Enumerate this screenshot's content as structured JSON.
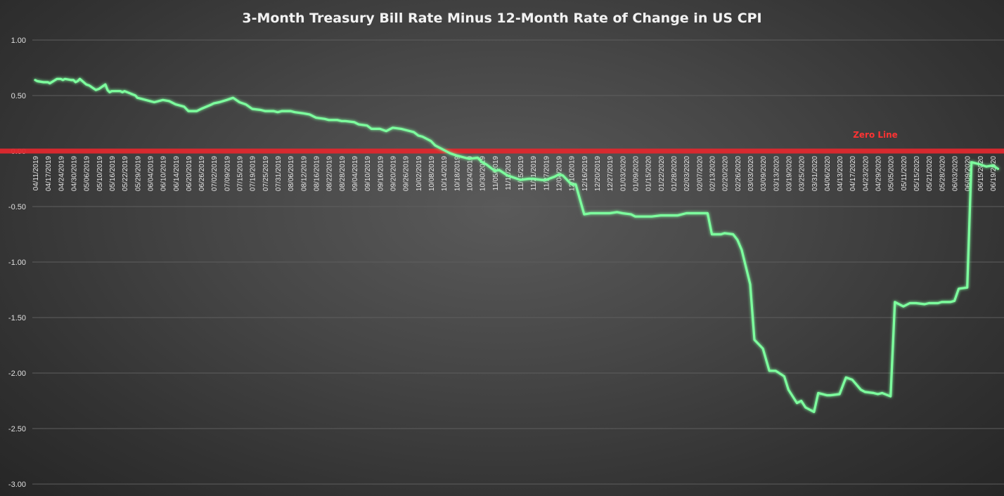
{
  "chart_data": {
    "type": "line",
    "title": "3-Month Treasury Bill Rate Minus 12-Month Rate of Change in US CPI",
    "xlabel": "",
    "ylabel": "",
    "ylim": [
      -3.0,
      1.0
    ],
    "yticks": [
      "1.00",
      "0.50",
      "0.00",
      "-0.50",
      "-1.00",
      "-1.50",
      "-2.00",
      "-2.50",
      "-3.00"
    ],
    "ytick_values": [
      1.0,
      0.5,
      0.0,
      -0.5,
      -1.0,
      -1.5,
      -2.0,
      -2.5,
      -3.0
    ],
    "grid": true,
    "legend": "none",
    "colors": {
      "series": "#7dff9e",
      "zero_line": "#e0282e",
      "annotation": "#ff3333",
      "title": "#f2f2f2",
      "grid": "#5e5e5e"
    },
    "x_tick_labels": [
      "04/11/2019",
      "04/17/2019",
      "04/24/2019",
      "04/30/2019",
      "05/06/2019",
      "05/10/2019",
      "05/16/2019",
      "05/22/2019",
      "05/29/2019",
      "06/04/2019",
      "06/10/2019",
      "06/14/2019",
      "06/20/2019",
      "06/26/2019",
      "07/02/2019",
      "07/09/2019",
      "07/15/2019",
      "07/19/2019",
      "07/25/2019",
      "07/31/2019",
      "08/06/2019",
      "08/12/2019",
      "08/16/2019",
      "08/22/2019",
      "08/28/2019",
      "09/04/2019",
      "09/10/2019",
      "09/16/2019",
      "09/20/2019",
      "09/26/2019",
      "10/02/2019",
      "10/08/2019",
      "10/14/2019",
      "10/18/2019",
      "10/24/2019",
      "10/30/2019",
      "11/05/2019",
      "11/11/2019",
      "11/15/2019",
      "11/21/2019",
      "11/27/2019",
      "12/04/2019",
      "12/10/2019",
      "12/16/2019",
      "12/20/2019",
      "12/27/2019",
      "01/03/2020",
      "01/09/2020",
      "01/15/2020",
      "01/22/2020",
      "01/28/2020",
      "02/03/2020",
      "02/07/2020",
      "02/13/2020",
      "02/20/2020",
      "02/26/2020",
      "03/03/2020",
      "03/09/2020",
      "03/13/2020",
      "03/19/2020",
      "03/25/2020",
      "03/31/2020",
      "04/06/2020",
      "04/13/2020",
      "04/17/2020",
      "04/23/2020",
      "04/29/2020",
      "05/05/2020",
      "05/11/2020",
      "05/15/2020",
      "05/21/2020",
      "05/28/2020",
      "06/03/2020",
      "06/09/2020",
      "06/15/2020",
      "06/19/2020"
    ],
    "series": [
      {
        "x": [
          "04/11/2019",
          "04/12/2019",
          "04/15/2019",
          "04/16/2019",
          "04/17/2019",
          "04/18/2019",
          "04/22/2019",
          "04/23/2019",
          "04/24/2019",
          "04/25/2019",
          "04/26/2019",
          "04/29/2019",
          "04/30/2019",
          "05/01/2019",
          "05/02/2019",
          "05/03/2019",
          "05/06/2019",
          "05/07/2019",
          "05/08/2019",
          "05/09/2019",
          "05/10/2019",
          "05/13/2019",
          "05/14/2019",
          "05/15/2019",
          "05/16/2019",
          "05/17/2019",
          "05/20/2019",
          "05/21/2019",
          "05/22/2019",
          "05/28/2019",
          "05/29/2019",
          "05/31/2019",
          "06/04/2019",
          "06/06/2019",
          "06/10/2019",
          "06/12/2019",
          "06/14/2019",
          "06/18/2019",
          "06/20/2019",
          "06/24/2019",
          "06/26/2019",
          "07/01/2019",
          "07/02/2019",
          "07/05/2019",
          "07/09/2019",
          "07/12/2019",
          "07/15/2019",
          "07/17/2019",
          "07/19/2019",
          "07/23/2019",
          "07/25/2019",
          "07/29/2019",
          "07/31/2019",
          "08/02/2019",
          "08/06/2019",
          "08/08/2019",
          "08/12/2019",
          "08/14/2019",
          "08/16/2019",
          "08/20/2019",
          "08/22/2019",
          "08/26/2019",
          "08/28/2019",
          "08/30/2019",
          "09/04/2019",
          "09/06/2019",
          "09/10/2019",
          "09/12/2019",
          "09/16/2019",
          "09/18/2019",
          "09/20/2019",
          "09/24/2019",
          "09/26/2019",
          "09/30/2019",
          "10/02/2019",
          "10/04/2019",
          "10/08/2019",
          "10/10/2019",
          "10/14/2019",
          "10/16/2019",
          "10/18/2019",
          "10/22/2019",
          "10/24/2019",
          "10/28/2019",
          "10/30/2019",
          "11/01/2019",
          "11/05/2019",
          "11/07/2019",
          "11/11/2019",
          "11/13/2019",
          "11/15/2019",
          "11/19/2019",
          "11/21/2019",
          "11/25/2019",
          "11/27/2019",
          "12/02/2019",
          "12/04/2019",
          "12/06/2019",
          "12/10/2019",
          "12/12/2019",
          "12/16/2019",
          "12/18/2019",
          "12/20/2019",
          "12/24/2019",
          "12/27/2019",
          "12/31/2019",
          "01/03/2020",
          "01/07/2020",
          "01/09/2020",
          "01/13/2020",
          "01/15/2020",
          "01/17/2020",
          "01/22/2020",
          "01/24/2020",
          "01/28/2020",
          "01/30/2020",
          "02/03/2020",
          "02/05/2020",
          "02/07/2020",
          "02/11/2020",
          "02/13/2020",
          "02/18/2020",
          "02/20/2020",
          "02/24/2020",
          "02/26/2020",
          "02/28/2020",
          "03/03/2020",
          "03/05/2020",
          "03/09/2020",
          "03/11/2020",
          "03/13/2020",
          "03/17/2020",
          "03/19/2020",
          "03/23/2020",
          "03/25/2020",
          "03/27/2020",
          "03/31/2020",
          "04/02/2020",
          "04/06/2020",
          "04/08/2020",
          "04/13/2020",
          "04/15/2020",
          "04/17/2020",
          "04/21/2020",
          "04/23/2020",
          "04/27/2020",
          "04/29/2020",
          "05/01/2020",
          "05/05/2020",
          "05/07/2020",
          "05/11/2020",
          "05/13/2020",
          "05/15/2020",
          "05/19/2020",
          "05/21/2020",
          "05/26/2020",
          "05/28/2020",
          "06/01/2020",
          "06/03/2020",
          "06/05/2020",
          "06/09/2020",
          "06/11/2020",
          "06/15/2020",
          "06/17/2020",
          "06/19/2020",
          "06/22/2020"
        ],
        "values": [
          0.64,
          0.63,
          0.62,
          0.62,
          0.62,
          0.61,
          0.65,
          0.65,
          0.65,
          0.64,
          0.65,
          0.64,
          0.64,
          0.62,
          0.63,
          0.65,
          0.6,
          0.59,
          0.57,
          0.55,
          0.56,
          0.6,
          0.55,
          0.53,
          0.54,
          0.54,
          0.54,
          0.53,
          0.54,
          0.5,
          0.48,
          0.47,
          0.45,
          0.44,
          0.46,
          0.45,
          0.42,
          0.4,
          0.36,
          0.36,
          0.38,
          0.42,
          0.43,
          0.44,
          0.46,
          0.48,
          0.44,
          0.42,
          0.38,
          0.37,
          0.36,
          0.36,
          0.35,
          0.36,
          0.36,
          0.35,
          0.34,
          0.33,
          0.3,
          0.29,
          0.28,
          0.28,
          0.27,
          0.27,
          0.26,
          0.24,
          0.23,
          0.2,
          0.2,
          0.18,
          0.21,
          0.2,
          0.19,
          0.17,
          0.14,
          0.13,
          0.09,
          0.05,
          0.01,
          -0.02,
          -0.04,
          -0.06,
          -0.07,
          -0.06,
          -0.1,
          -0.12,
          -0.18,
          -0.17,
          -0.22,
          -0.24,
          -0.26,
          -0.25,
          -0.25,
          -0.26,
          -0.26,
          -0.23,
          -0.21,
          -0.22,
          -0.3,
          -0.3,
          -0.57,
          -0.56,
          -0.56,
          -0.56,
          -0.56,
          -0.55,
          -0.56,
          -0.57,
          -0.59,
          -0.59,
          -0.59,
          -0.59,
          -0.58,
          -0.58,
          -0.58,
          -0.58,
          -0.56,
          -0.56,
          -0.56,
          -0.56,
          -0.75,
          -0.75,
          -0.74,
          -0.75,
          -0.8,
          -0.89,
          -1.2,
          -1.7,
          -1.78,
          -1.98,
          -1.98,
          -2.03,
          -2.15,
          -2.27,
          -2.25,
          -2.31,
          -2.35,
          -2.18,
          -2.2,
          -2.2,
          -2.19,
          -2.04,
          -2.06,
          -2.15,
          -2.17,
          -2.18,
          -2.19,
          -2.18,
          -2.21,
          -1.36,
          -1.4,
          -1.37,
          -1.37,
          -1.38,
          -1.37,
          -1.37,
          -1.36,
          -1.36,
          -1.35,
          -1.24,
          -1.23,
          -0.1,
          -0.12,
          -0.14,
          -0.13,
          -0.16
        ]
      }
    ],
    "reference_line": {
      "y": 0.0,
      "label": "Zero Line"
    }
  }
}
